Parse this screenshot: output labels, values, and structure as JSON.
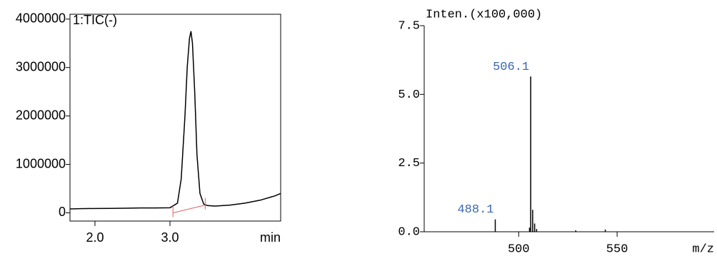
{
  "chart_data": [
    {
      "type": "line",
      "title": "1:TIC(-)",
      "xlabel": "min",
      "frame": true,
      "color": "#000000",
      "x": [
        1.667,
        1.8,
        2.0,
        2.2,
        2.4,
        2.6,
        2.8,
        3.0,
        3.1,
        3.15,
        3.2,
        3.23,
        3.26,
        3.28,
        3.3,
        3.33,
        3.36,
        3.4,
        3.45,
        3.5,
        3.6,
        3.8,
        4.0,
        4.2,
        4.4,
        4.476
      ],
      "values": [
        80000,
        85000,
        90000,
        92000,
        95000,
        100000,
        100000,
        105000,
        200000,
        700000,
        2000000,
        3000000,
        3600000,
        3750000,
        3500000,
        2500000,
        1200000,
        400000,
        180000,
        150000,
        140000,
        160000,
        200000,
        260000,
        350000,
        400000
      ],
      "baseline": {
        "color": "#e06060",
        "x": [
          3.04,
          3.47
        ],
        "values": [
          0,
          160000
        ]
      },
      "xlim": [
        1.667,
        4.476
      ],
      "ylim": [
        -170000,
        4100000
      ],
      "xticks": [
        {
          "value": 2.0,
          "label": "2.0"
        },
        {
          "value": 3.0,
          "label": "3.0"
        }
      ],
      "yticks": [
        0,
        1000000,
        2000000,
        3000000,
        4000000
      ]
    },
    {
      "type": "stem",
      "ylabel": "Inten.(x100,000)",
      "xlabel": "m/z",
      "frame": false,
      "color": "#000000",
      "label_color": "#3a66b0",
      "x": [
        488.1,
        505.5,
        506.1,
        507.1,
        508.1,
        509.1,
        529.0,
        544.0
      ],
      "values": [
        0.45,
        0.15,
        5.65,
        0.8,
        0.3,
        0.1,
        0.05,
        0.08
      ],
      "peak_labels": [
        {
          "x": 488.1,
          "y": 0.45,
          "text": "488.1"
        },
        {
          "x": 506.1,
          "y": 5.65,
          "text": "506.1"
        }
      ],
      "xlim": [
        452,
        599.3
      ],
      "ylim": [
        0,
        7.5
      ],
      "xticks": [
        500,
        550
      ],
      "yticks": [
        {
          "value": 0,
          "label": "0.0"
        },
        {
          "value": 2.5,
          "label": "2.5"
        },
        {
          "value": 5.0,
          "label": "5.0"
        },
        {
          "value": 7.5,
          "label": "7.5"
        }
      ]
    }
  ]
}
